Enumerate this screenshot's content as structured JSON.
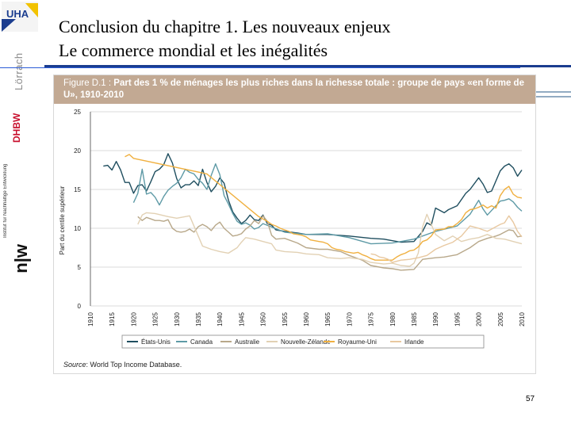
{
  "sidebar": {
    "logo_text": "UHA",
    "lorrach_text": "Lörrach",
    "dhbw_text": "DHBW",
    "institute_text": "Institut für Nachhaltige Entwicklung",
    "nw_text": "n|w"
  },
  "slide": {
    "title": "Conclusion du chapitre 1. Les nouveaux enjeux",
    "subtitle": "Le commerce mondial et les inégalités",
    "page_number": "57"
  },
  "figure": {
    "label": "Figure D.1 : ",
    "title_text": "Part des 1 % de ménages les plus riches dans la richesse totale : groupe de pays «en forme de U», 1910-2010",
    "source_label": "Source",
    "source_text": ": World Top Income Database."
  },
  "chart_data": {
    "type": "line",
    "ylabel": "Part du centile supérieur",
    "xlabel": "",
    "ylim": [
      0,
      25
    ],
    "xlim": [
      1910,
      2010
    ],
    "y_ticks": [
      "0",
      "5",
      "10",
      "15",
      "20",
      "25"
    ],
    "x_ticks": [
      "1910",
      "1915",
      "1920",
      "1925",
      "1930",
      "1935",
      "1940",
      "1945",
      "1950",
      "1955",
      "1960",
      "1965",
      "1970",
      "1975",
      "1980",
      "1985",
      "1990",
      "1995",
      "2000",
      "2005",
      "2010"
    ],
    "grid": true,
    "legend_position": "bottom",
    "series": [
      {
        "name": "États-Unis",
        "color": "#1f4e5f",
        "x": [
          1913,
          1914,
          1915,
          1916,
          1917,
          1918,
          1919,
          1920,
          1921,
          1922,
          1923,
          1924,
          1925,
          1926,
          1927,
          1928,
          1929,
          1930,
          1931,
          1932,
          1933,
          1934,
          1935,
          1936,
          1937,
          1938,
          1939,
          1940,
          1941,
          1942,
          1943,
          1944,
          1945,
          1946,
          1947,
          1948,
          1949,
          1950,
          1951,
          1952,
          1953,
          1955,
          1958,
          1960,
          1965,
          1970,
          1975,
          1978,
          1980,
          1982,
          1985,
          1987,
          1988,
          1989,
          1990,
          1992,
          1993,
          1995,
          1997,
          1998,
          2000,
          2001,
          2002,
          2003,
          2005,
          2006,
          2007,
          2008,
          2009,
          2010
        ],
        "y": [
          18.0,
          18.1,
          17.5,
          18.6,
          17.5,
          15.9,
          15.9,
          14.5,
          15.5,
          15.6,
          14.8,
          16.0,
          17.3,
          17.6,
          18.2,
          19.6,
          18.4,
          16.4,
          15.2,
          15.6,
          15.6,
          16.1,
          15.5,
          17.6,
          15.9,
          14.7,
          15.4,
          16.5,
          15.8,
          13.6,
          12.1,
          11.3,
          10.6,
          11.0,
          11.7,
          11.1,
          11.0,
          11.7,
          10.6,
          10.4,
          9.8,
          9.6,
          9.4,
          9.2,
          9.2,
          9.0,
          8.7,
          8.6,
          8.4,
          8.2,
          8.3,
          9.6,
          10.7,
          10.4,
          12.6,
          12.0,
          12.4,
          12.9,
          14.5,
          15.0,
          16.5,
          15.7,
          14.6,
          14.8,
          17.4,
          18.0,
          18.3,
          17.8,
          16.7,
          17.5
        ]
      },
      {
        "name": "Canada",
        "color": "#5e9aa6",
        "x": [
          1920,
          1921,
          1922,
          1923,
          1924,
          1925,
          1926,
          1927,
          1928,
          1929,
          1930,
          1931,
          1932,
          1933,
          1934,
          1935,
          1936,
          1937,
          1938,
          1939,
          1940,
          1941,
          1942,
          1943,
          1944,
          1945,
          1946,
          1947,
          1948,
          1949,
          1950,
          1955,
          1960,
          1965,
          1970,
          1975,
          1980,
          1985,
          1990,
          1995,
          1998,
          2000,
          2001,
          2002,
          2005,
          2006,
          2007,
          2008,
          2009,
          2010
        ],
        "y": [
          13.3,
          14.5,
          17.6,
          14.4,
          14.6,
          14.0,
          13.0,
          14.1,
          14.9,
          15.4,
          15.8,
          16.5,
          17.6,
          17.2,
          17.0,
          16.3,
          15.8,
          15.0,
          16.8,
          18.3,
          16.9,
          14.2,
          13.1,
          11.9,
          10.9,
          10.5,
          10.7,
          10.4,
          9.9,
          10.1,
          10.6,
          9.5,
          9.2,
          9.3,
          8.8,
          8.0,
          8.1,
          8.6,
          9.6,
          10.3,
          11.8,
          13.6,
          12.5,
          11.7,
          13.5,
          13.6,
          13.8,
          13.4,
          12.7,
          12.2
        ]
      },
      {
        "name": "Australie",
        "color": "#b8a88a",
        "x": [
          1921,
          1922,
          1923,
          1924,
          1925,
          1926,
          1927,
          1928,
          1929,
          1930,
          1931,
          1932,
          1933,
          1934,
          1935,
          1936,
          1937,
          1938,
          1939,
          1940,
          1941,
          1942,
          1943,
          1944,
          1945,
          1946,
          1947,
          1948,
          1949,
          1950,
          1951,
          1952,
          1953,
          1955,
          1958,
          1960,
          1963,
          1965,
          1968,
          1970,
          1973,
          1975,
          1978,
          1980,
          1982,
          1985,
          1987,
          1990,
          1992,
          1995,
          1998,
          2000,
          2002,
          2004,
          2005,
          2006,
          2007,
          2008,
          2009,
          2010
        ],
        "y": [
          11.5,
          11.0,
          11.4,
          11.2,
          11.0,
          11.0,
          10.9,
          11.1,
          10.0,
          9.6,
          9.5,
          9.6,
          9.9,
          9.5,
          10.2,
          10.5,
          10.2,
          9.7,
          10.4,
          10.8,
          10.0,
          9.5,
          9.0,
          9.1,
          9.3,
          9.9,
          10.3,
          11.0,
          10.6,
          11.6,
          10.9,
          9.1,
          8.6,
          8.7,
          8.1,
          7.5,
          7.3,
          7.3,
          7.0,
          6.5,
          5.9,
          5.2,
          4.9,
          4.8,
          4.6,
          4.7,
          6.0,
          6.2,
          6.3,
          6.6,
          7.5,
          8.3,
          8.7,
          9.0,
          9.2,
          9.5,
          9.8,
          9.7,
          8.9,
          9.0
        ]
      },
      {
        "name": "Nouvelle-Zélande",
        "color": "#e2d1b4",
        "x": [
          1921,
          1922,
          1923,
          1925,
          1928,
          1930,
          1933,
          1935,
          1936,
          1938,
          1940,
          1942,
          1944,
          1945,
          1946,
          1948,
          1950,
          1952,
          1953,
          1955,
          1958,
          1960,
          1963,
          1965,
          1968,
          1970,
          1973,
          1975,
          1978,
          1980,
          1982,
          1984,
          1985,
          1986,
          1987,
          1988,
          1990,
          1992,
          1994,
          1996,
          1998,
          2000,
          2002,
          2004,
          2006,
          2008,
          2010
        ],
        "y": [
          10.5,
          11.7,
          12.0,
          11.9,
          11.5,
          11.3,
          11.6,
          9.0,
          7.7,
          7.3,
          7.0,
          6.8,
          7.5,
          8.2,
          8.8,
          8.6,
          8.3,
          8.0,
          7.2,
          7.0,
          6.9,
          6.7,
          6.6,
          6.2,
          6.1,
          6.2,
          6.0,
          5.6,
          5.4,
          5.5,
          5.2,
          5.1,
          5.5,
          6.8,
          10.2,
          11.8,
          9.2,
          8.4,
          9.0,
          8.3,
          8.6,
          8.8,
          9.2,
          8.7,
          8.6,
          8.3,
          8.0
        ]
      },
      {
        "name": "Royaume-Uni",
        "color": "#f0b040",
        "x": [
          1918,
          1919,
          1920,
          1937,
          1949,
          1951,
          1952,
          1953,
          1954,
          1955,
          1956,
          1957,
          1958,
          1959,
          1960,
          1961,
          1962,
          1963,
          1964,
          1965,
          1966,
          1967,
          1968,
          1969,
          1970,
          1971,
          1972,
          1973,
          1974,
          1975,
          1976,
          1977,
          1978,
          1979,
          1980,
          1981,
          1982,
          1983,
          1984,
          1985,
          1986,
          1987,
          1988,
          1989,
          1990,
          1992,
          1993,
          1994,
          1995,
          1996,
          1997,
          1998,
          1999,
          2000,
          2001,
          2002,
          2003,
          2004,
          2005,
          2006,
          2007,
          2008,
          2009,
          2010
        ],
        "y": [
          19.2,
          19.5,
          19.0,
          17.0,
          11.5,
          10.9,
          10.5,
          10.3,
          10.0,
          9.8,
          9.6,
          9.3,
          9.2,
          9.1,
          8.9,
          8.5,
          8.4,
          8.3,
          8.2,
          8.0,
          7.5,
          7.3,
          7.2,
          7.0,
          6.9,
          6.8,
          6.9,
          6.6,
          6.4,
          6.1,
          5.9,
          5.9,
          5.9,
          5.9,
          5.9,
          6.3,
          6.6,
          6.8,
          7.1,
          7.2,
          7.6,
          8.3,
          8.5,
          9.0,
          9.8,
          9.9,
          10.2,
          10.2,
          10.6,
          11.1,
          12.0,
          12.4,
          12.5,
          12.7,
          13.0,
          12.6,
          12.9,
          12.6,
          14.2,
          15.0,
          15.4,
          14.4,
          14.0,
          13.9
        ]
      },
      {
        "name": "Irlande",
        "color": "#e8c8a0",
        "x": [
          1975,
          1976,
          1977,
          1978,
          1979,
          1980,
          1982,
          1984,
          1986,
          1988,
          1990,
          1992,
          1994,
          1996,
          1998,
          2000,
          2001,
          2002,
          2003,
          2004,
          2005,
          2006,
          2007,
          2008,
          2009,
          2010
        ],
        "y": [
          6.7,
          6.6,
          6.3,
          6.2,
          6.0,
          5.6,
          5.9,
          6.0,
          6.2,
          6.5,
          7.3,
          7.8,
          8.2,
          9.0,
          10.3,
          10.0,
          9.8,
          9.6,
          9.9,
          10.2,
          10.5,
          10.7,
          11.6,
          10.8,
          9.6,
          8.9
        ]
      }
    ]
  }
}
